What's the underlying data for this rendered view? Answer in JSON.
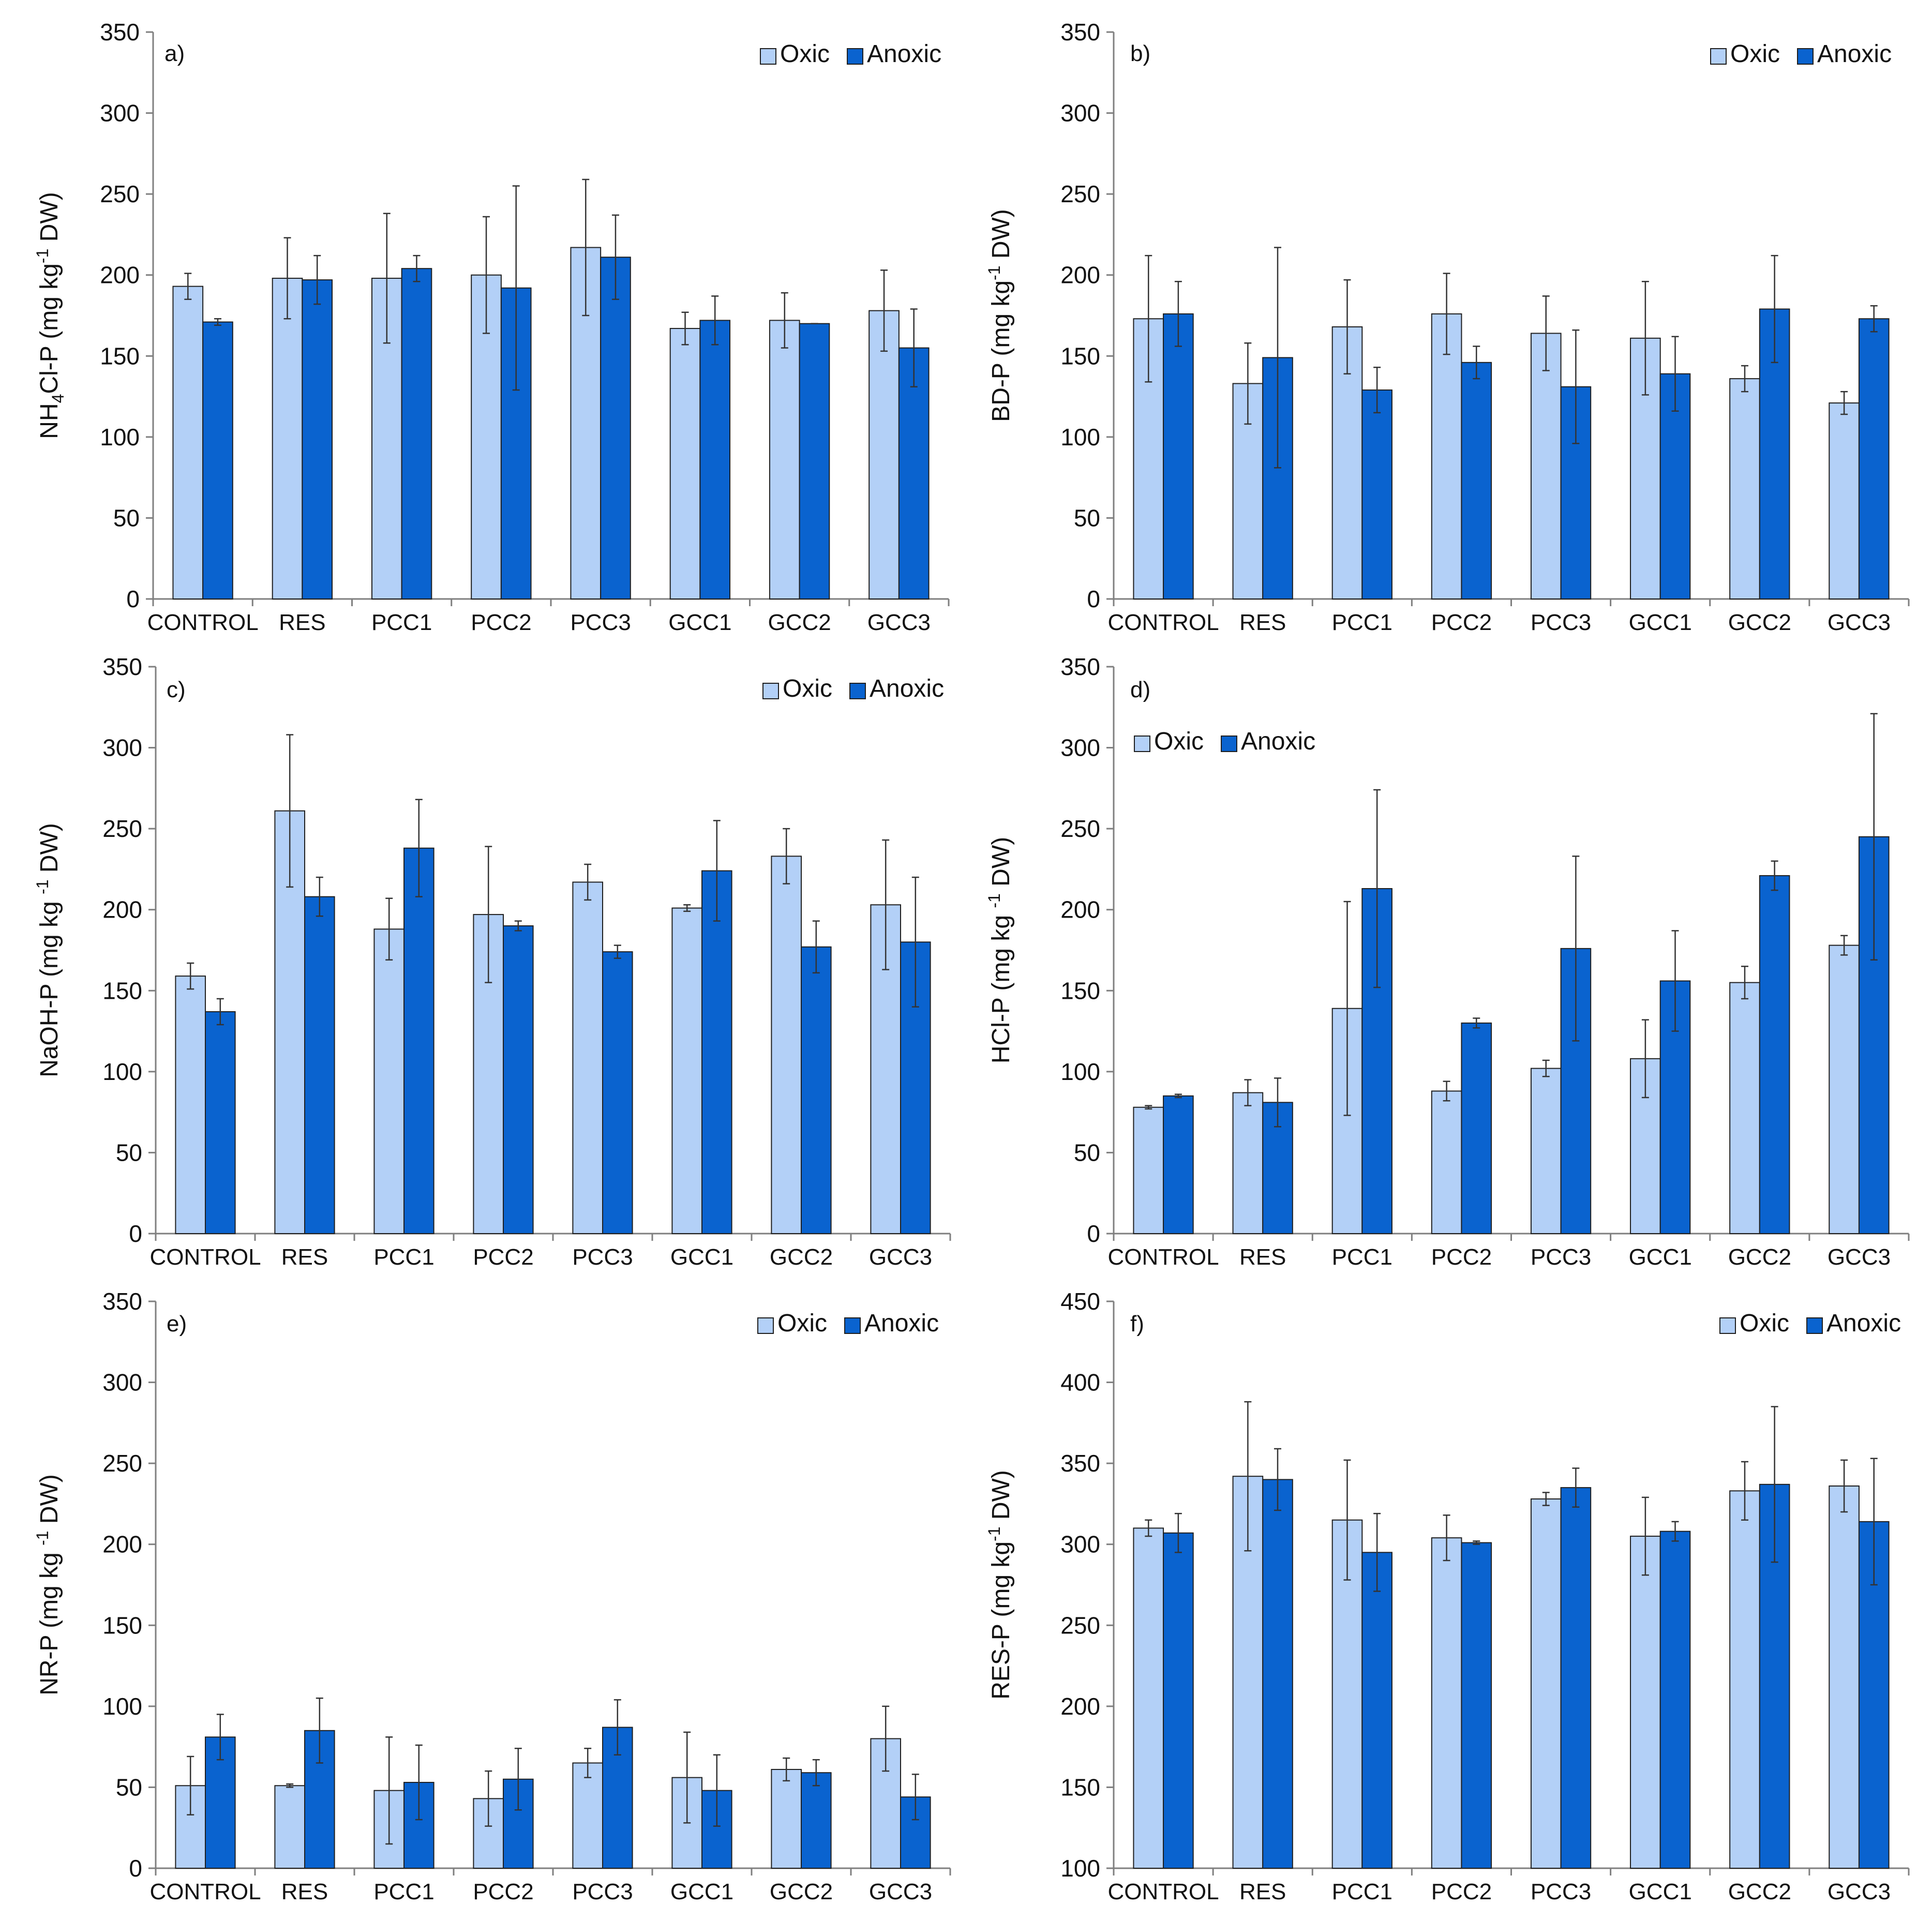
{
  "colors": {
    "oxic": "#b3d0f7",
    "anoxic": "#0a63cf",
    "axis": "#7f7f7f",
    "error": "#333333"
  },
  "legend": {
    "oxic_label": "Oxic",
    "anoxic_label": "Anoxic"
  },
  "chart_data": [
    {
      "type": "bar",
      "panel": "a)",
      "ylabel": {
        "pre": "NH",
        "sub": "4",
        "mid": "Cl-P (mg kg",
        "sup": "-1",
        "post": " DW)"
      },
      "ylim": [
        0,
        350
      ],
      "yticks": [
        0,
        50,
        100,
        150,
        200,
        250,
        300,
        350
      ],
      "legend_position": "top-right",
      "categories": [
        "CONTROL",
        "RES",
        "PCC1",
        "PCC2",
        "PCC3",
        "GCC1",
        "GCC2",
        "GCC3"
      ],
      "series": [
        {
          "name": "Oxic",
          "values": [
            193,
            198,
            198,
            200,
            217,
            167,
            172,
            178
          ],
          "errors": [
            8,
            25,
            40,
            36,
            42,
            10,
            17,
            25
          ]
        },
        {
          "name": "Anoxic",
          "values": [
            171,
            197,
            204,
            192,
            211,
            172,
            170,
            155
          ],
          "errors": [
            2,
            15,
            8,
            63,
            26,
            15,
            0,
            24
          ]
        }
      ]
    },
    {
      "type": "bar",
      "panel": "b)",
      "ylabel": {
        "pre": "BD-P (mg kg",
        "sup": "-1",
        "post": " DW)"
      },
      "ylim": [
        0,
        350
      ],
      "yticks": [
        0,
        50,
        100,
        150,
        200,
        250,
        300,
        350
      ],
      "legend_position": "top-right",
      "categories": [
        "CONTROL",
        "RES",
        "PCC1",
        "PCC2",
        "PCC3",
        "GCC1",
        "GCC2",
        "GCC3"
      ],
      "series": [
        {
          "name": "Oxic",
          "values": [
            173,
            133,
            168,
            176,
            164,
            161,
            136,
            121
          ],
          "errors": [
            39,
            25,
            29,
            25,
            23,
            35,
            8,
            7
          ]
        },
        {
          "name": "Anoxic",
          "values": [
            176,
            149,
            129,
            146,
            131,
            139,
            179,
            173
          ],
          "errors": [
            20,
            68,
            14,
            10,
            35,
            23,
            33,
            8
          ]
        }
      ]
    },
    {
      "type": "bar",
      "panel": "c)",
      "ylabel": {
        "pre": "NaOH-P (mg kg ",
        "sup": "-1",
        "post": " DW)"
      },
      "ylim": [
        0,
        350
      ],
      "yticks": [
        0,
        50,
        100,
        150,
        200,
        250,
        300,
        350
      ],
      "legend_position": "top-right",
      "categories": [
        "CONTROL",
        "RES",
        "PCC1",
        "PCC2",
        "PCC3",
        "GCC1",
        "GCC2",
        "GCC3"
      ],
      "series": [
        {
          "name": "Oxic",
          "values": [
            159,
            261,
            188,
            197,
            217,
            201,
            233,
            203
          ],
          "errors": [
            8,
            47,
            19,
            42,
            11,
            2,
            17,
            40
          ]
        },
        {
          "name": "Anoxic",
          "values": [
            137,
            208,
            238,
            190,
            174,
            224,
            177,
            180
          ],
          "errors": [
            8,
            12,
            30,
            3,
            4,
            31,
            16,
            40
          ]
        }
      ]
    },
    {
      "type": "bar",
      "panel": "d)",
      "ylabel": {
        "pre": "HCl-P (mg kg ",
        "sup": "-1",
        "post": " DW)"
      },
      "ylim": [
        0,
        350
      ],
      "yticks": [
        0,
        50,
        100,
        150,
        200,
        250,
        300,
        350
      ],
      "legend_position": "top-left",
      "categories": [
        "CONTROL",
        "RES",
        "PCC1",
        "PCC2",
        "PCC3",
        "GCC1",
        "GCC2",
        "GCC3"
      ],
      "series": [
        {
          "name": "Oxic",
          "values": [
            78,
            87,
            139,
            88,
            102,
            108,
            155,
            178
          ],
          "errors": [
            1,
            8,
            66,
            6,
            5,
            24,
            10,
            6
          ]
        },
        {
          "name": "Anoxic",
          "values": [
            85,
            81,
            213,
            130,
            176,
            156,
            221,
            245
          ],
          "errors": [
            1,
            15,
            61,
            3,
            57,
            31,
            9,
            76
          ]
        }
      ]
    },
    {
      "type": "bar",
      "panel": "e)",
      "ylabel": {
        "pre": "NR-P (mg kg ",
        "sup": "-1",
        "post": " DW)"
      },
      "ylim": [
        0,
        350
      ],
      "yticks": [
        0,
        50,
        100,
        150,
        200,
        250,
        300,
        350
      ],
      "legend_position": "top-right",
      "categories": [
        "CONTROL",
        "RES",
        "PCC1",
        "PCC2",
        "PCC3",
        "GCC1",
        "GCC2",
        "GCC3"
      ],
      "series": [
        {
          "name": "Oxic",
          "values": [
            51,
            51,
            48,
            43,
            65,
            56,
            61,
            80
          ],
          "errors": [
            18,
            1,
            33,
            17,
            9,
            28,
            7,
            20
          ]
        },
        {
          "name": "Anoxic",
          "values": [
            81,
            85,
            53,
            55,
            87,
            48,
            59,
            44
          ],
          "errors": [
            14,
            20,
            23,
            19,
            17,
            22,
            8,
            14
          ]
        }
      ]
    },
    {
      "type": "bar",
      "panel": "f)",
      "ylabel": {
        "pre": "RES-P (mg kg",
        "sup": "-1",
        "post": " DW)"
      },
      "ylim": [
        100,
        450
      ],
      "yticks": [
        100,
        150,
        200,
        250,
        300,
        350,
        400,
        450
      ],
      "legend_position": "top-right",
      "categories": [
        "CONTROL",
        "RES",
        "PCC1",
        "PCC2",
        "PCC3",
        "GCC1",
        "GCC2",
        "GCC3"
      ],
      "series": [
        {
          "name": "Oxic",
          "values": [
            310,
            342,
            315,
            304,
            328,
            305,
            333,
            336
          ],
          "errors": [
            5,
            46,
            37,
            14,
            4,
            24,
            18,
            16
          ]
        },
        {
          "name": "Anoxic",
          "values": [
            307,
            340,
            295,
            301,
            335,
            308,
            337,
            314
          ],
          "errors": [
            12,
            19,
            24,
            1,
            12,
            6,
            48,
            39
          ]
        }
      ]
    }
  ]
}
